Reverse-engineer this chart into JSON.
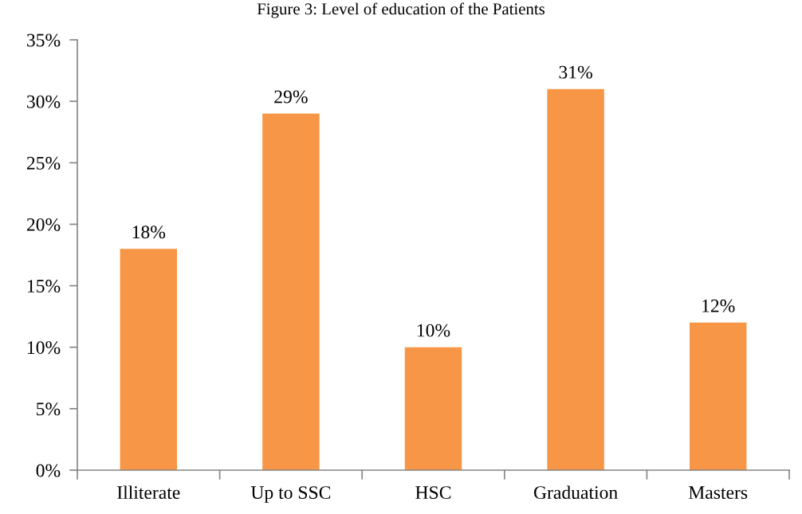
{
  "chart_data": {
    "type": "bar",
    "title": "Figure 3: Level of education of the Patients",
    "categories": [
      "Illiterate",
      "Up to SSC",
      "HSC",
      "Graduation",
      "Masters"
    ],
    "values": [
      18,
      29,
      10,
      31,
      12
    ],
    "color": "#f79646",
    "value_labels": [
      "18%",
      "29%",
      "10%",
      "31%",
      "12%"
    ],
    "ylim": [
      0,
      35
    ],
    "yticks": [
      {
        "value": 0,
        "label": "0%"
      },
      {
        "value": 5,
        "label": "5%"
      },
      {
        "value": 10,
        "label": "10%"
      },
      {
        "value": 15,
        "label": "15%"
      },
      {
        "value": 20,
        "label": "20%"
      },
      {
        "value": 25,
        "label": "25%"
      },
      {
        "value": 30,
        "label": "30%"
      },
      {
        "value": 35,
        "label": "35%"
      }
    ],
    "grid": false,
    "legend": false
  }
}
